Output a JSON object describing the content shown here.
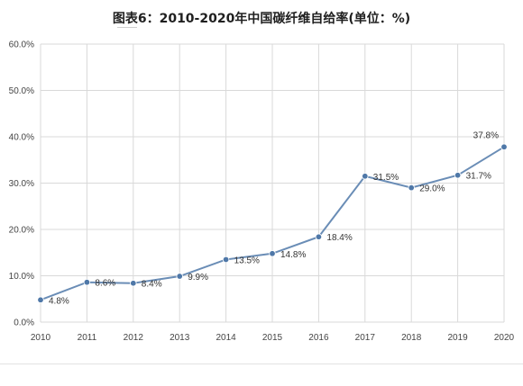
{
  "chart_data": {
    "type": "line",
    "title": "图表6：2010-2020年中国碳纤维自给率(单位：%)",
    "categories": [
      "2010",
      "2011",
      "2012",
      "2013",
      "2014",
      "2015",
      "2016",
      "2017",
      "2018",
      "2019",
      "2020"
    ],
    "series": [
      {
        "values": [
          4.8,
          8.6,
          8.4,
          9.9,
          13.5,
          14.8,
          18.4,
          31.5,
          29.0,
          31.7,
          37.8
        ]
      }
    ],
    "data_labels": [
      "4.8%",
      "8.6%",
      "8.4%",
      "9.9%",
      "13.5%",
      "14.8%",
      "18.4%",
      "31.5%",
      "29.0%",
      "31.7%",
      "37.8%"
    ],
    "y_ticks": [
      "0.0%",
      "10.0%",
      "20.0%",
      "30.0%",
      "40.0%",
      "50.0%",
      "60.0%"
    ],
    "ylim": [
      0,
      60
    ],
    "grid": true,
    "colors": {
      "line": "#6a8db6",
      "marker": "#4f78a8",
      "grid": "#d9d9d9"
    }
  }
}
